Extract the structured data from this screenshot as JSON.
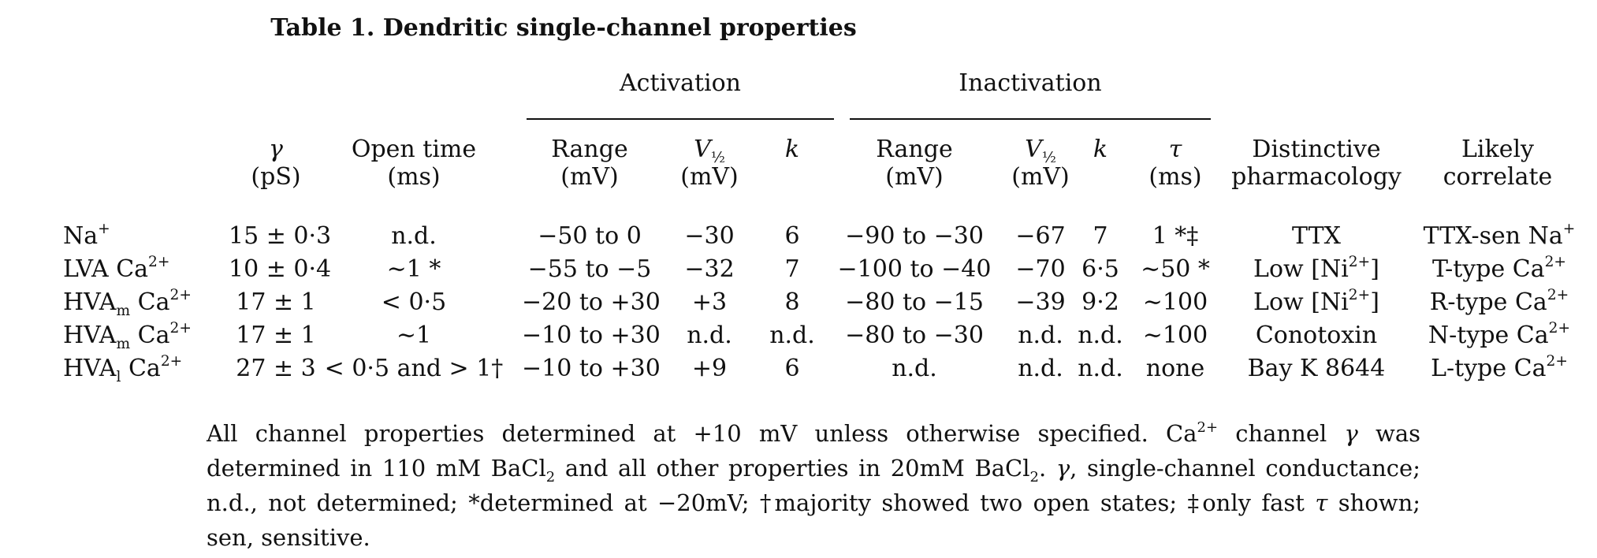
{
  "table": {
    "title": "Table 1. Dendritic single-channel properties",
    "groups": {
      "activation": "Activation",
      "inactivation": "Inactivation"
    },
    "headers": {
      "gamma": {
        "top": "γ",
        "unit": "(pS)"
      },
      "open_time": {
        "top": "Open time",
        "unit": "(ms)"
      },
      "act_range": {
        "top": "Range",
        "unit": "(mV)"
      },
      "act_v_half": {
        "top": "V",
        "sub": "½",
        "unit": "(mV)"
      },
      "act_k": {
        "top": "k"
      },
      "inact_range": {
        "top": "Range",
        "unit": "(mV)"
      },
      "inact_v_half": {
        "top": "V",
        "sub": "½",
        "unit": "(mV)"
      },
      "inact_k": {
        "top": "k"
      },
      "inact_tau": {
        "top": "τ",
        "unit": "(ms)"
      },
      "pharmacology": {
        "top": "Distinctive",
        "bottom": "pharmacology"
      },
      "correlate": {
        "top": "Likely",
        "bottom": "correlate"
      }
    },
    "rows": [
      {
        "channel": {
          "base": "Na",
          "sub": "",
          "ion": "",
          "sup": "+"
        },
        "gamma": "15 ± 0·3",
        "open_time": "n.d.",
        "act_range": "−50 to 0",
        "act_v_half": "−30",
        "act_k": "6",
        "inact_range": "−90 to −30",
        "inact_v_half": "−67",
        "inact_k": "7",
        "inact_tau": "1 *‡",
        "pharmacology": {
          "text": "TTX",
          "sup": "",
          "tail": ""
        },
        "correlate": {
          "text": "TTX-sen Na",
          "sup": "+"
        }
      },
      {
        "channel": {
          "base": "LVA",
          "sub": "",
          "ion": " Ca",
          "sup": "2+"
        },
        "gamma": "10 ± 0·4",
        "open_time": "∼1 *",
        "act_range": "−55 to −5",
        "act_v_half": "−32",
        "act_k": "7",
        "inact_range": "−100 to −40",
        "inact_v_half": "−70",
        "inact_k": "6·5",
        "inact_tau": "∼50 *",
        "pharmacology": {
          "text": "Low [Ni",
          "sup": "2+",
          "tail": "]"
        },
        "correlate": {
          "text": "T-type Ca",
          "sup": "2+"
        }
      },
      {
        "channel": {
          "base": "HVA",
          "sub": "m",
          "ion": " Ca",
          "sup": "2+"
        },
        "gamma": "17 ± 1",
        "open_time": "< 0·5",
        "act_range": "−20 to +30",
        "act_v_half": "+3",
        "act_k": "8",
        "inact_range": "−80 to −15",
        "inact_v_half": "−39",
        "inact_k": "9·2",
        "inact_tau": "∼100",
        "pharmacology": {
          "text": "Low [Ni",
          "sup": "2+",
          "tail": "]"
        },
        "correlate": {
          "text": "R-type Ca",
          "sup": "2+"
        }
      },
      {
        "channel": {
          "base": "HVA",
          "sub": "m",
          "ion": " Ca",
          "sup": "2+"
        },
        "gamma": "17 ± 1",
        "open_time": "∼1",
        "act_range": "−10 to +30",
        "act_v_half": "n.d.",
        "act_k": "n.d.",
        "inact_range": "−80 to −30",
        "inact_v_half": "n.d.",
        "inact_k": "n.d.",
        "inact_tau": "∼100",
        "pharmacology": {
          "text": "Conotoxin",
          "sup": "",
          "tail": ""
        },
        "correlate": {
          "text": "N-type Ca",
          "sup": "2+"
        }
      },
      {
        "channel": {
          "base": "HVA",
          "sub": "l",
          "ion": " Ca",
          "sup": "2+"
        },
        "gamma": "27 ± 3",
        "open_time": "< 0·5 and > 1†",
        "act_range": "−10 to +30",
        "act_v_half": "+9",
        "act_k": "6",
        "inact_range": "n.d.",
        "inact_v_half": "n.d.",
        "inact_k": "n.d.",
        "inact_tau": "none",
        "pharmacology": {
          "text": "Bay K 8644",
          "sup": "",
          "tail": ""
        },
        "correlate": {
          "text": "L-type Ca",
          "sup": "2+"
        }
      }
    ]
  },
  "footnote": {
    "p1": "All channel properties determined at +10 mV unless otherwise specified. Ca",
    "p1_sup": "2+",
    "p2": " channel ",
    "gamma": "γ",
    "p3": " was determined in 110 mM BaCl",
    "sub1": "2",
    "p4": " and all other properties in 20mM BaCl",
    "sub2": "2",
    "p5": ". ",
    "p6": ", single-channel conductance; n.d., not determined; ",
    "star": "*",
    "p7": "determined at −20mV; ",
    "dagger": "†",
    "p8": "majority showed two open states; ",
    "ddagger": "‡",
    "p9": "only fast ",
    "tau": "τ",
    "p10": " shown; sen, sensitive."
  }
}
